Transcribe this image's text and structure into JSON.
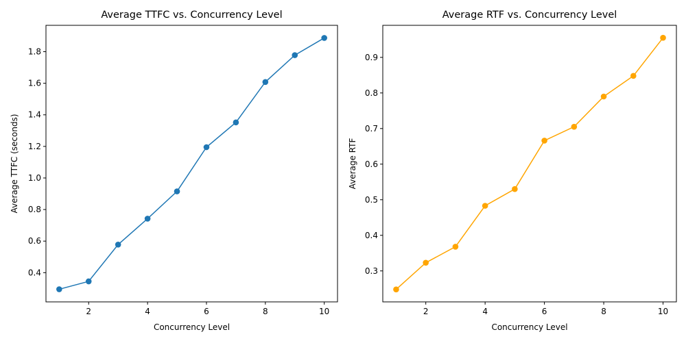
{
  "chart_data": [
    {
      "type": "line",
      "title": "Average TTFC vs. Concurrency Level",
      "xlabel": "Concurrency Level",
      "ylabel": "Average TTFC (seconds)",
      "x": [
        1,
        2,
        3,
        4,
        5,
        6,
        7,
        8,
        9,
        10
      ],
      "series": [
        {
          "values": [
            0.295,
            0.345,
            0.578,
            0.742,
            0.915,
            1.195,
            1.352,
            1.608,
            1.778,
            1.887
          ],
          "color": "#1f77b4",
          "marker": "circle"
        }
      ],
      "xlim": [
        0.55,
        10.45
      ],
      "ylim": [
        0.215,
        1.967
      ],
      "xticks": [
        2,
        4,
        6,
        8,
        10
      ],
      "yticks": [
        0.4,
        0.6,
        0.8,
        1.0,
        1.2,
        1.4,
        1.6,
        1.8
      ],
      "ytick_labels": [
        "0.4",
        "0.6",
        "0.8",
        "1.0",
        "1.2",
        "1.4",
        "1.6",
        "1.8"
      ],
      "grid": false
    },
    {
      "type": "line",
      "title": "Average RTF vs. Concurrency Level",
      "xlabel": "Concurrency Level",
      "ylabel": "Average RTF",
      "x": [
        1,
        2,
        3,
        4,
        5,
        6,
        7,
        8,
        9,
        10
      ],
      "series": [
        {
          "values": [
            0.248,
            0.323,
            0.368,
            0.483,
            0.53,
            0.666,
            0.705,
            0.79,
            0.848,
            0.955
          ],
          "color": "#ffa500",
          "marker": "circle"
        }
      ],
      "xlim": [
        0.55,
        10.45
      ],
      "ylim": [
        0.213,
        0.99
      ],
      "xticks": [
        2,
        4,
        6,
        8,
        10
      ],
      "yticks": [
        0.3,
        0.4,
        0.5,
        0.6,
        0.7,
        0.8,
        0.9
      ],
      "ytick_labels": [
        "0.3",
        "0.4",
        "0.5",
        "0.6",
        "0.7",
        "0.8",
        "0.9"
      ],
      "grid": false
    }
  ]
}
